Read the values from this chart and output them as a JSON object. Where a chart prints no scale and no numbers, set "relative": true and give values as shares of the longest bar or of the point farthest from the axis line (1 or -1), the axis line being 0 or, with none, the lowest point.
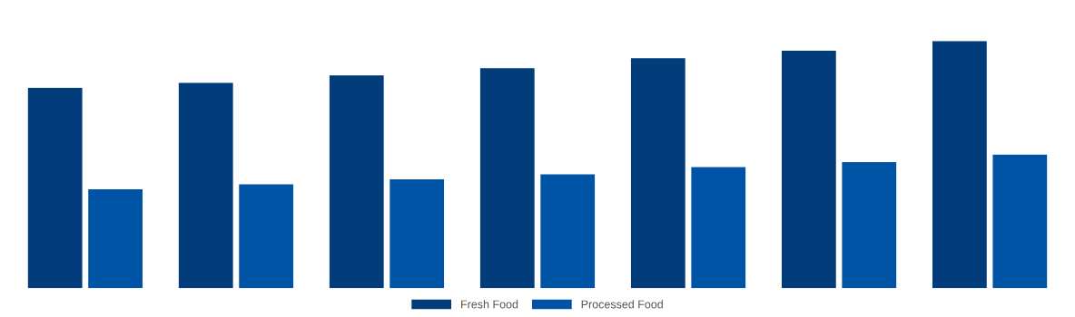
{
  "chart_data": {
    "type": "bar",
    "relative": true,
    "categories": [
      null,
      null,
      null,
      null,
      null,
      null,
      null
    ],
    "series": [
      {
        "name": "Fresh Food",
        "color": "#023c7a",
        "values": [
          0.81,
          0.83,
          0.86,
          0.89,
          0.93,
          0.96,
          1
        ]
      },
      {
        "name": "Processed Food",
        "color": "#0054a6",
        "values": [
          0.4,
          0.42,
          0.44,
          0.46,
          0.49,
          0.51,
          0.54
        ]
      }
    ],
    "legend": "bottom",
    "grid": false
  }
}
